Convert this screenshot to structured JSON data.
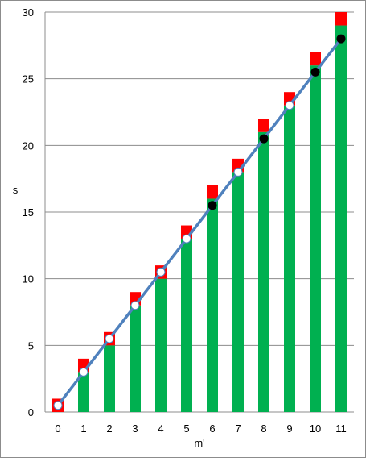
{
  "chart_data": {
    "type": "bar",
    "stacked": true,
    "xlabel": "m'",
    "ylabel": "s",
    "ylim": [
      0,
      30
    ],
    "yticks": [
      0,
      5,
      10,
      15,
      20,
      25,
      30
    ],
    "grid": true,
    "categories": [
      "0",
      "1",
      "2",
      "3",
      "4",
      "5",
      "6",
      "7",
      "8",
      "9",
      "10",
      "11"
    ],
    "series": [
      {
        "type": "bar",
        "color": "#00B050",
        "values": [
          0,
          3,
          5,
          8,
          10,
          13,
          16,
          18,
          21,
          23,
          26,
          29
        ]
      },
      {
        "type": "bar",
        "color": "#FF0000",
        "values": [
          1,
          1,
          1,
          1,
          1,
          1,
          1,
          1,
          1,
          1,
          1,
          1
        ]
      },
      {
        "type": "line",
        "color": "#4F81BD",
        "values": [
          0.5,
          3,
          5.5,
          8,
          10.5,
          13,
          15.5,
          18,
          20.5,
          23,
          25.5,
          28
        ]
      },
      {
        "type": "scatter",
        "marker_fill": "#FFFFFF",
        "marker": "circle",
        "x": [
          "0",
          "1",
          "2",
          "3",
          "4",
          "5",
          "7",
          "9"
        ],
        "values": [
          0.5,
          3,
          5.5,
          8,
          10.5,
          13,
          18,
          23
        ]
      },
      {
        "type": "scatter",
        "marker_fill": "#000000",
        "marker": "circle",
        "x": [
          "6",
          "8",
          "10",
          "11"
        ],
        "values": [
          15.5,
          20.5,
          25.5,
          28
        ]
      }
    ]
  }
}
